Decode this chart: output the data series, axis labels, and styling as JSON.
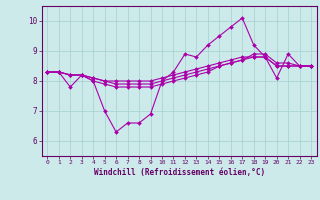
{
  "xlabel": "Windchill (Refroidissement éolien,°C)",
  "background_color": "#cceaea",
  "grid_color": "#aad4d4",
  "line_color": "#aa00aa",
  "xlim": [
    -0.5,
    23.5
  ],
  "ylim": [
    5.5,
    10.5
  ],
  "yticks": [
    6,
    7,
    8,
    9,
    10
  ],
  "xticks": [
    0,
    1,
    2,
    3,
    4,
    5,
    6,
    7,
    8,
    9,
    10,
    11,
    12,
    13,
    14,
    15,
    16,
    17,
    18,
    19,
    20,
    21,
    22,
    23
  ],
  "series": [
    [
      8.3,
      8.3,
      7.8,
      8.2,
      8.0,
      7.0,
      6.3,
      6.6,
      6.6,
      6.9,
      8.0,
      8.3,
      8.9,
      8.8,
      9.2,
      9.5,
      9.8,
      10.1,
      9.2,
      8.8,
      8.1,
      8.9,
      8.5,
      8.5
    ],
    [
      8.3,
      8.3,
      8.2,
      8.2,
      8.1,
      8.0,
      8.0,
      8.0,
      8.0,
      8.0,
      8.1,
      8.2,
      8.3,
      8.4,
      8.5,
      8.6,
      8.7,
      8.8,
      8.8,
      8.8,
      8.5,
      8.5,
      8.5,
      8.5
    ],
    [
      8.3,
      8.3,
      8.2,
      8.2,
      8.1,
      8.0,
      7.9,
      7.9,
      7.9,
      7.9,
      8.0,
      8.1,
      8.2,
      8.3,
      8.4,
      8.5,
      8.6,
      8.7,
      8.8,
      8.8,
      8.5,
      8.5,
      8.5,
      8.5
    ],
    [
      8.3,
      8.3,
      8.2,
      8.2,
      8.0,
      7.9,
      7.8,
      7.8,
      7.8,
      7.8,
      7.9,
      8.0,
      8.1,
      8.2,
      8.3,
      8.5,
      8.6,
      8.7,
      8.9,
      8.9,
      8.6,
      8.6,
      8.5,
      8.5
    ]
  ]
}
